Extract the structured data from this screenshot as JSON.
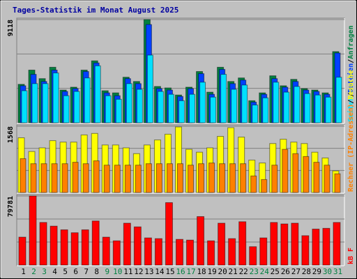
{
  "chart_data": [
    {
      "type": "bar",
      "title": "Tages-Statistik im Monat August 2025",
      "ylim": [
        0,
        9118
      ],
      "yticks": [
        9118
      ],
      "legend_separator": "/",
      "series": [
        {
          "name": "Anfragen",
          "color": "#008040",
          "values": [
            3396,
            4653,
            3899,
            4905,
            2892,
            3144,
            4653,
            5471,
            2830,
            2641,
            4024,
            3647,
            9118,
            3207,
            3081,
            2452,
            3144,
            4527,
            2704,
            4905,
            3647,
            3961,
            1949,
            2641,
            4150,
            3270,
            3836,
            3018,
            2892,
            2641,
            6288
          ]
        },
        {
          "name": "Dateien",
          "color": "#0040ff",
          "values": [
            3270,
            4276,
            3647,
            4653,
            2767,
            3018,
            4527,
            5282,
            2641,
            2389,
            3899,
            3458,
            8677,
            3018,
            2892,
            2327,
            3018,
            4339,
            2515,
            4716,
            3458,
            3773,
            1824,
            2515,
            3899,
            3144,
            3647,
            2892,
            2767,
            2515,
            6162
          ]
        },
        {
          "name": "Seiten",
          "color": "#00e0ff",
          "values": [
            2830,
            3458,
            3458,
            4402,
            2389,
            2767,
            3961,
            5030,
            2389,
            2075,
            3458,
            2955,
            5974,
            2767,
            2515,
            1949,
            2515,
            3584,
            2264,
            4276,
            2955,
            3333,
            1572,
            2201,
            3584,
            2704,
            3207,
            2578,
            2452,
            2264,
            4024
          ]
        }
      ]
    },
    {
      "type": "bar",
      "ylim": [
        0,
        1568
      ],
      "yticks": [
        1568
      ],
      "legend_separator": "/",
      "series": [
        {
          "name": "Besuche",
          "color": "#ffff00",
          "values": [
            1295,
            971,
            1057,
            1227,
            1193,
            1193,
            1363,
            1398,
            1125,
            1125,
            1057,
            920,
            1125,
            1244,
            1380,
            1551,
            1022,
            954,
            1057,
            1329,
            1534,
            1312,
            767,
            699,
            1159,
            1261,
            1193,
            1159,
            954,
            818,
            511
          ]
        },
        {
          "name": "Rechner (IP-Adressen)",
          "color": "#ff8000",
          "values": [
            801,
            682,
            682,
            682,
            682,
            716,
            682,
            750,
            648,
            648,
            648,
            648,
            682,
            682,
            682,
            682,
            648,
            682,
            699,
            682,
            682,
            682,
            392,
            307,
            648,
            1022,
            920,
            852,
            716,
            648,
            443
          ]
        }
      ]
    },
    {
      "type": "bar",
      "ylim": [
        0,
        79781
      ],
      "yticks": [
        79781
      ],
      "categories": [
        "1",
        "2",
        "3",
        "4",
        "5",
        "6",
        "7",
        "8",
        "9",
        "10",
        "11",
        "12",
        "13",
        "14",
        "15",
        "16",
        "17",
        "18",
        "19",
        "20",
        "21",
        "22",
        "23",
        "24",
        "25",
        "26",
        "27",
        "28",
        "29",
        "30",
        "31"
      ],
      "category_colors": [
        "#000000",
        "#008040",
        "#008040",
        "#000000",
        "#000000",
        "#000000",
        "#000000",
        "#000000",
        "#008040",
        "#008040",
        "#000000",
        "#000000",
        "#000000",
        "#000000",
        "#000000",
        "#008040",
        "#008040",
        "#000000",
        "#000000",
        "#000000",
        "#000000",
        "#000000",
        "#008040",
        "#008040",
        "#000000",
        "#000000",
        "#000000",
        "#000000",
        "#000000",
        "#008040",
        "#008040"
      ],
      "series": [
        {
          "name": "kB F",
          "color": "#ff0000",
          "values": [
            32251,
            79781,
            49225,
            44981,
            40738,
            37343,
            40738,
            50922,
            32251,
            28007,
            48376,
            44132,
            31402,
            30553,
            72140,
            29705,
            28856,
            56014,
            28007,
            48376,
            30553,
            50073,
            21218,
            31402,
            49225,
            47527,
            48376,
            33948,
            41586,
            42435,
            49225
          ]
        }
      ]
    }
  ]
}
